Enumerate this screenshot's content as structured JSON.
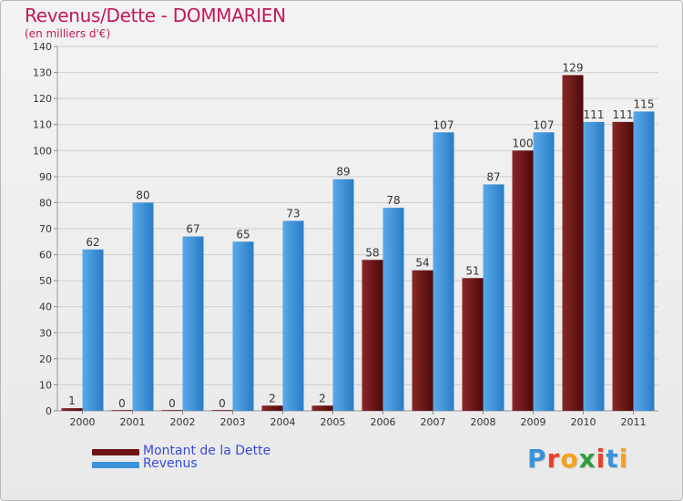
{
  "title": "Revenus/Dette - DOMMARIEN",
  "subtitle": "(en milliers d'€)",
  "colors": {
    "title": "#c2185b",
    "dette": "#6e1414",
    "revenus": "#3b92d8",
    "legend_text": "#3a4bd6",
    "grid": "#cfcfcf"
  },
  "legend": {
    "dette": "Montant de la Dette",
    "revenus": "Revenus"
  },
  "logo": {
    "text": "Proxiti",
    "letter_colors": [
      "#3b92d8",
      "#e8412a",
      "#f7a21b",
      "#2e9e3e",
      "#e8412a",
      "#3b92d8",
      "#f7a21b"
    ]
  },
  "chart_data": {
    "type": "bar",
    "title": "Revenus/Dette - DOMMARIEN",
    "subtitle": "(en milliers d'€)",
    "categories": [
      "2000",
      "2001",
      "2002",
      "2003",
      "2004",
      "2005",
      "2006",
      "2007",
      "2008",
      "2009",
      "2010",
      "2011"
    ],
    "series": [
      {
        "name": "Montant de la Dette",
        "values": [
          1,
          0,
          0,
          0,
          2,
          2,
          58,
          54,
          51,
          100,
          129,
          111
        ]
      },
      {
        "name": "Revenus",
        "values": [
          62,
          80,
          67,
          65,
          73,
          89,
          78,
          107,
          87,
          107,
          111,
          115
        ]
      }
    ],
    "ylim": [
      0,
      140
    ],
    "yticks": [
      0,
      10,
      20,
      30,
      40,
      50,
      60,
      70,
      80,
      90,
      100,
      110,
      120,
      130,
      140
    ],
    "grid": true,
    "legend_position": "bottom-left"
  }
}
